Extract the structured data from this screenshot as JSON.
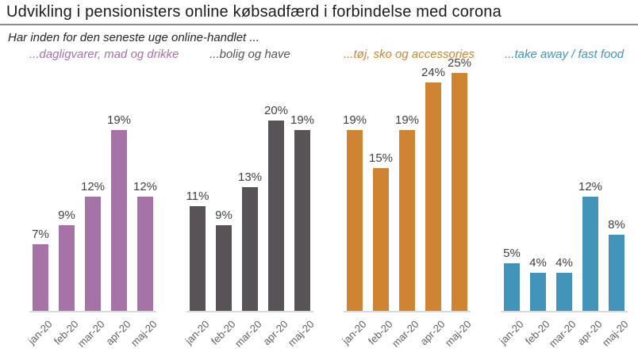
{
  "page": {
    "title": "Udvikling i pensionisters online købsadfærd i forbindelse med corona",
    "subtitle": "Har inden for den seneste uge online-handlet ..."
  },
  "chart_data": [
    {
      "type": "bar",
      "title": "...dagligvarer, mad og drikke",
      "color": "#A673A6",
      "categories": [
        "jan-20",
        "feb-20",
        "mar-20",
        "apr-20",
        "maj-20"
      ],
      "values": [
        7,
        9,
        12,
        19,
        12
      ],
      "labels": [
        "7%",
        "9%",
        "12%",
        "19%",
        "12%"
      ],
      "unit": "%",
      "ylim": [
        0,
        25
      ],
      "grid": false,
      "value_labels": "above-bars",
      "axis_line_color": "#d9d9d9"
    },
    {
      "type": "bar",
      "title": "...bolig og have",
      "color": "#575356",
      "categories": [
        "jan-20",
        "feb-20",
        "mar-20",
        "apr-20",
        "maj-20"
      ],
      "values": [
        11,
        9,
        13,
        20,
        19
      ],
      "labels": [
        "11%",
        "9%",
        "13%",
        "20%",
        "19%"
      ],
      "unit": "%",
      "ylim": [
        0,
        25
      ],
      "grid": false,
      "value_labels": "above-bars",
      "axis_line_color": "#d9d9d9"
    },
    {
      "type": "bar",
      "title": "...tøj, sko og accessories",
      "color": "#CE8432",
      "categories": [
        "jan-20",
        "feb-20",
        "mar-20",
        "apr-20",
        "maj-20"
      ],
      "values": [
        19,
        15,
        19,
        24,
        25
      ],
      "labels": [
        "19%",
        "15%",
        "19%",
        "24%",
        "25%"
      ],
      "unit": "%",
      "ylim": [
        0,
        25
      ],
      "grid": false,
      "value_labels": "above-bars",
      "axis_line_color": "#d9d9d9"
    },
    {
      "type": "bar",
      "title": "...take away / fast food",
      "color": "#4294BA",
      "categories": [
        "jan-20",
        "feb-20",
        "mar-20",
        "apr-20",
        "maj-20"
      ],
      "values": [
        5,
        4,
        4,
        12,
        8
      ],
      "labels": [
        "5%",
        "4%",
        "4%",
        "12%",
        "8%"
      ],
      "unit": "%",
      "ylim": [
        0,
        25
      ],
      "grid": false,
      "value_labels": "above-bars",
      "axis_line_color": "#d9d9d9"
    }
  ]
}
